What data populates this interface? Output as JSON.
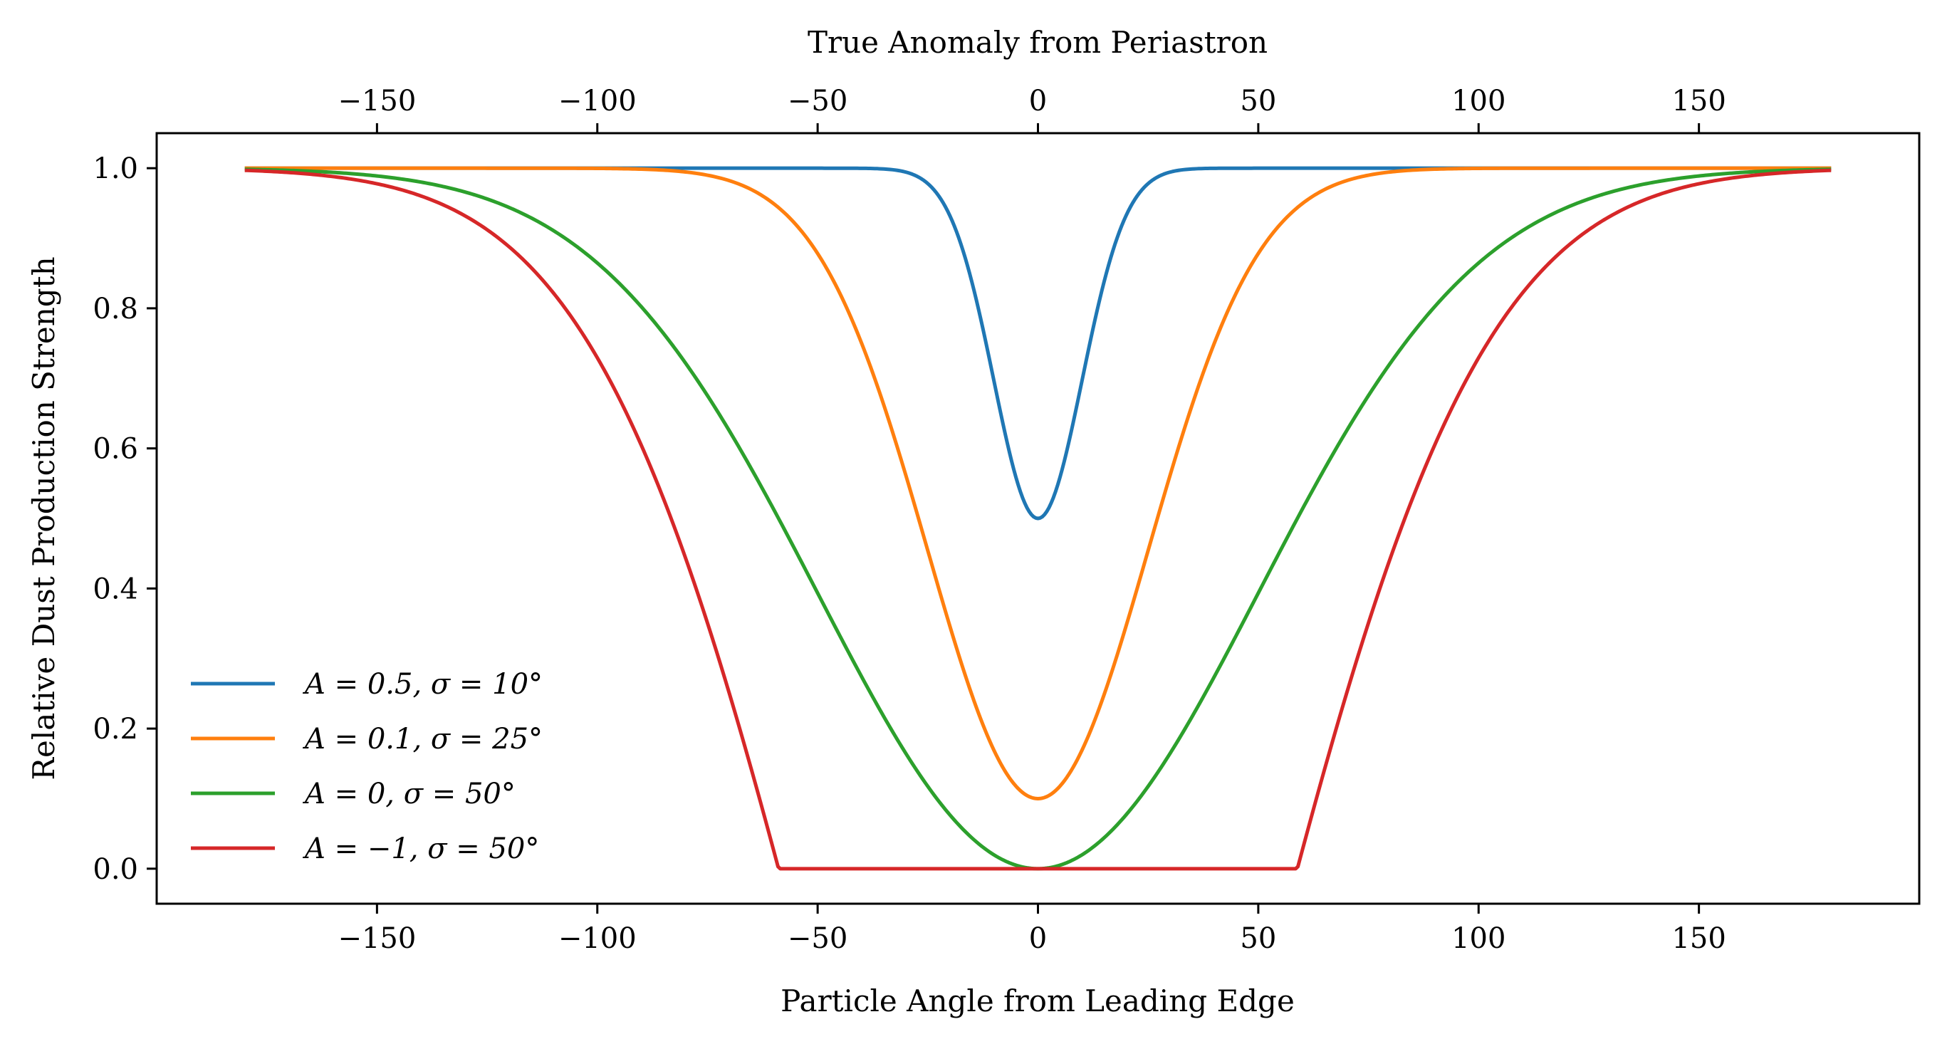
{
  "chart_data": {
    "type": "line",
    "xlabel": "Particle Angle from Leading Edge",
    "x2label": "True Anomaly from Periastron",
    "ylabel": "Relative Dust Production Strength",
    "xlim": [
      -200,
      200
    ],
    "ylim": [
      -0.05,
      1.05
    ],
    "xticks": [
      -150,
      -100,
      -50,
      0,
      50,
      100,
      150
    ],
    "xtick_labels": [
      "−150",
      "−100",
      "−50",
      "0",
      "50",
      "100",
      "150"
    ],
    "yticks": [
      0.0,
      0.2,
      0.4,
      0.6,
      0.8,
      1.0
    ],
    "ytick_labels": [
      "0.0",
      "0.2",
      "0.4",
      "0.6",
      "0.8",
      "1.0"
    ],
    "grid": false,
    "legend_position": "lower-left",
    "x_range": [
      -180,
      180
    ],
    "series": [
      {
        "name": "A = 0.5, σ = 10°",
        "A": 0.5,
        "sigma": 10,
        "color": "#1f77b4"
      },
      {
        "name": "A = 0.1, σ = 25°",
        "A": 0.1,
        "sigma": 25,
        "color": "#ff7f0e"
      },
      {
        "name": "A = 0, σ = 50°",
        "A": 0,
        "sigma": 50,
        "color": "#2ca02c"
      },
      {
        "name": "A = −1, σ = 50°",
        "A": -1,
        "sigma": 50,
        "color": "#d62728"
      }
    ]
  }
}
